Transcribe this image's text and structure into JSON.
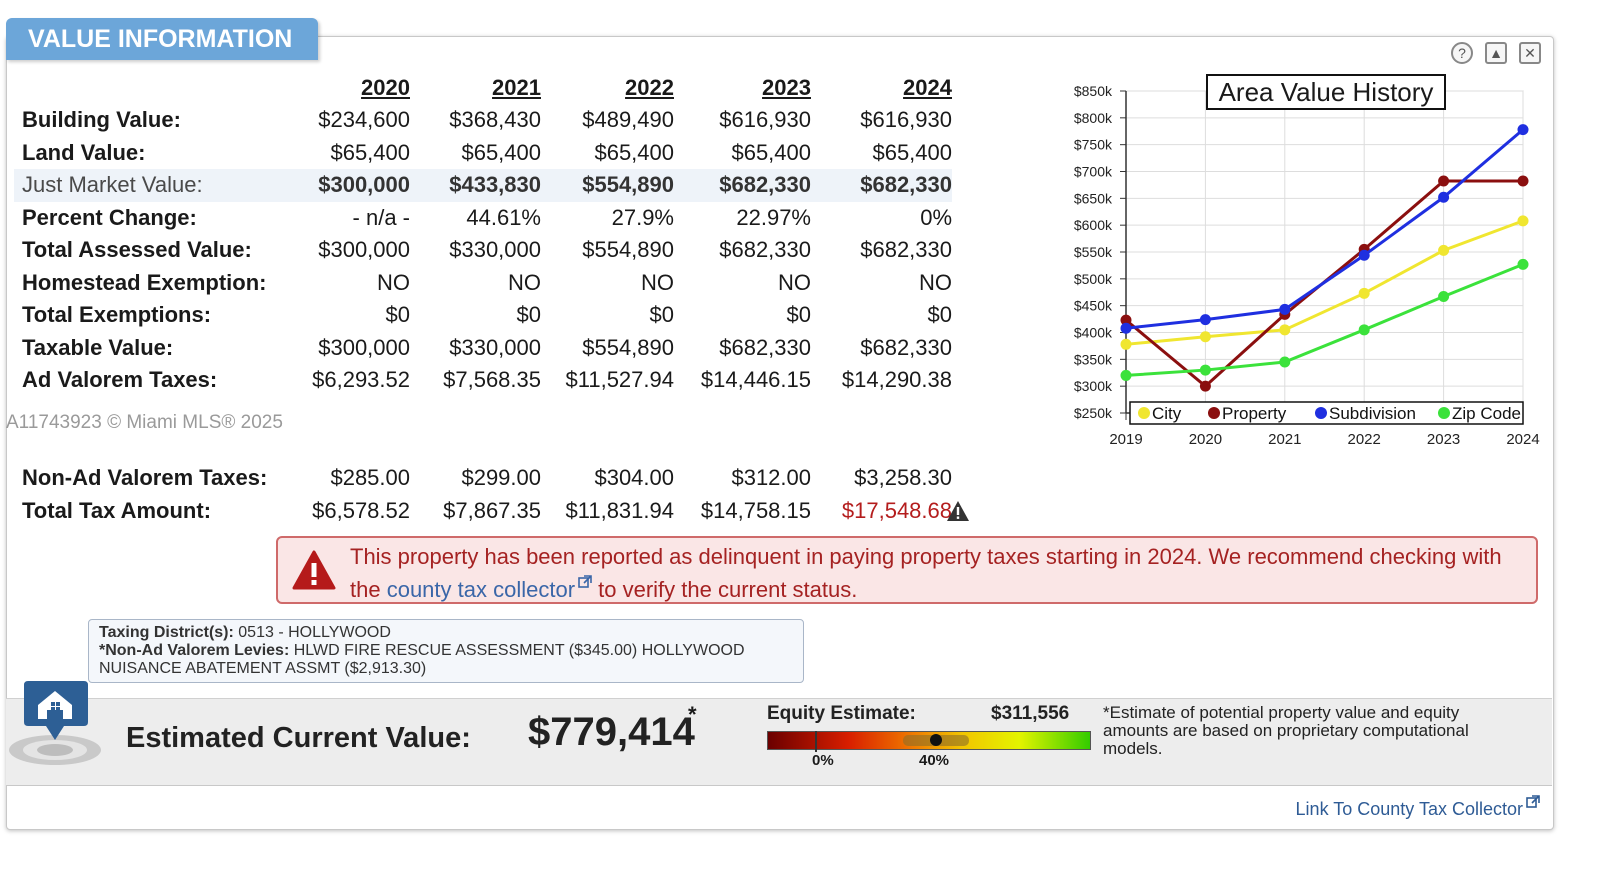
{
  "header": {
    "title": "VALUE INFORMATION"
  },
  "controls": {
    "help_icon": "?",
    "collapse_icon": "▲",
    "close_icon": "✕"
  },
  "years": [
    "2020",
    "2021",
    "2022",
    "2023",
    "2024"
  ],
  "rows": [
    {
      "label": "Building Value:",
      "values": [
        "$234,600",
        "$368,430",
        "$489,490",
        "$616,930",
        "$616,930"
      ]
    },
    {
      "label": "Land Value:",
      "values": [
        "$65,400",
        "$65,400",
        "$65,400",
        "$65,400",
        "$65,400"
      ]
    },
    {
      "label": "Just Market Value:",
      "values": [
        "$300,000",
        "$433,830",
        "$554,890",
        "$682,330",
        "$682,330"
      ],
      "highlight": true
    },
    {
      "label": "Percent Change:",
      "values": [
        "- n/a -",
        "44.61%",
        "27.9%",
        "22.97%",
        "0%"
      ]
    },
    {
      "label": "Total Assessed Value:",
      "values": [
        "$300,000",
        "$330,000",
        "$554,890",
        "$682,330",
        "$682,330"
      ]
    },
    {
      "label": "Homestead Exemption:",
      "values": [
        "NO",
        "NO",
        "NO",
        "NO",
        "NO"
      ]
    },
    {
      "label": "Total Exemptions:",
      "values": [
        "$0",
        "$0",
        "$0",
        "$0",
        "$0"
      ]
    },
    {
      "label": "Taxable Value:",
      "values": [
        "$300,000",
        "$330,000",
        "$554,890",
        "$682,330",
        "$682,330"
      ]
    },
    {
      "label": "Ad Valorem Taxes:",
      "values": [
        "$6,293.52",
        "$7,568.35",
        "$11,527.94",
        "$14,446.15",
        "$14,290.38"
      ]
    }
  ],
  "watermark": "A11743923 © Miami MLS® 2025",
  "tax_rows": [
    {
      "label": "Non-Ad Valorem Taxes:",
      "values": [
        "$285.00",
        "$299.00",
        "$304.00",
        "$312.00",
        "$3,258.30"
      ]
    },
    {
      "label": "Total Tax Amount:",
      "values": [
        "$6,578.52",
        "$7,867.35",
        "$11,831.94",
        "$14,758.15",
        "$17,548.68"
      ]
    }
  ],
  "alert": {
    "text_before": "This property has been reported as delinquent in paying property taxes starting in 2024. We recommend checking with the ",
    "link_text": "county tax collector",
    "text_after": " to verify the current status."
  },
  "district": {
    "district_label": "Taxing District(s):",
    "district_value": "0513 - HOLLYWOOD",
    "levies_label": "*Non-Ad Valorem Levies:",
    "levies_value": "HLWD FIRE RESCUE ASSESSMENT ($345.00) HOLLYWOOD NUISANCE ABATEMENT ASSMT ($2,913.30)"
  },
  "estimate": {
    "label": "Estimated Current Value:",
    "value": "$779,414",
    "star": "*",
    "equity_label": "Equity Estimate:",
    "equity_value": "$311,556",
    "equity_percent": 40,
    "tick_0": "0%",
    "tick_40": "40%",
    "disclaimer": "*Estimate of potential property value and equity amounts are based on proprietary computational models."
  },
  "footer": {
    "county_link": "Link To County Tax Collector"
  },
  "colors": {
    "tab": "#6ca6d9",
    "alert_text": "#a52222",
    "link": "#3a66a8",
    "city": "#f0e630",
    "property": "#8b0f0f",
    "subdivision": "#1f2fe0",
    "zip": "#3be23b"
  },
  "chart_data": {
    "type": "line",
    "title": "Area Value History",
    "x": [
      2019,
      2020,
      2021,
      2022,
      2023,
      2024
    ],
    "x_ticks": [
      "2019",
      "2020",
      "2021",
      "2022",
      "2023",
      "2024"
    ],
    "ylim": [
      250000,
      850000
    ],
    "y_ticks": [
      "$250k",
      "$300k",
      "$350k",
      "$400k",
      "$450k",
      "$500k",
      "$550k",
      "$600k",
      "$650k",
      "$700k",
      "$750k",
      "$800k",
      "$850k"
    ],
    "grid": true,
    "legend_position": "bottom",
    "series": [
      {
        "name": "City",
        "color": "#f0e630",
        "values": [
          378000,
          392000,
          405000,
          473000,
          553000,
          608000
        ]
      },
      {
        "name": "Property",
        "color": "#8b0f0f",
        "values": [
          423000,
          300000,
          433830,
          554890,
          682330,
          682330
        ]
      },
      {
        "name": "Subdivision",
        "color": "#1f2fe0",
        "values": [
          408000,
          424000,
          443000,
          544000,
          652000,
          778000
        ]
      },
      {
        "name": "Zip Code",
        "color": "#3be23b",
        "values": [
          320000,
          330000,
          345000,
          405000,
          467000,
          527000
        ]
      }
    ]
  }
}
